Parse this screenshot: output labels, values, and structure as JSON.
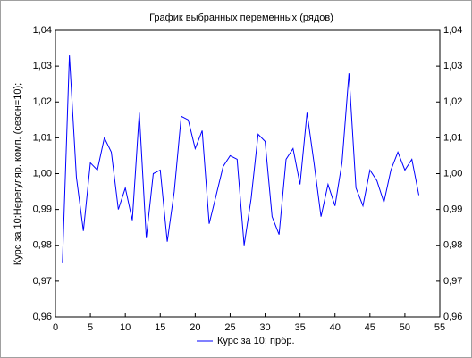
{
  "chart_data": {
    "type": "line",
    "title": "График выбранных переменных (рядов)",
    "y_label": "Курс за 10;Нерегуляр. комп. (сезон=10);",
    "x": [
      1,
      2,
      3,
      4,
      5,
      6,
      7,
      8,
      9,
      10,
      11,
      12,
      13,
      14,
      15,
      16,
      17,
      18,
      19,
      20,
      21,
      22,
      23,
      24,
      25,
      26,
      27,
      28,
      29,
      30,
      31,
      32,
      33,
      34,
      35,
      36,
      37,
      38,
      39,
      40,
      41,
      42,
      43,
      44,
      45,
      46,
      47,
      48,
      49,
      50,
      51,
      52
    ],
    "series": [
      {
        "name": "Курс за 10; прбр.",
        "color": "#0000ff",
        "values": [
          0.975,
          1.033,
          0.999,
          0.984,
          1.003,
          1.001,
          1.01,
          1.006,
          0.99,
          0.996,
          0.987,
          1.017,
          0.982,
          1.0,
          1.001,
          0.981,
          0.995,
          1.016,
          1.015,
          1.007,
          1.012,
          0.986,
          0.994,
          1.002,
          1.005,
          1.004,
          0.98,
          0.993,
          1.011,
          1.009,
          0.988,
          0.983,
          1.004,
          1.007,
          0.997,
          1.017,
          1.003,
          0.988,
          0.997,
          0.991,
          1.003,
          1.028,
          0.996,
          0.991,
          1.001,
          0.998,
          0.992,
          1.001,
          1.006,
          1.001,
          1.004,
          0.994
        ]
      }
    ],
    "xlim": [
      0,
      55
    ],
    "xticks": [
      0,
      5,
      10,
      15,
      20,
      25,
      30,
      35,
      40,
      45,
      50,
      55
    ],
    "ylim": [
      0.96,
      1.04
    ],
    "yticks": [
      {
        "value": 0.96,
        "label": "0,96"
      },
      {
        "value": 0.97,
        "label": "0,97"
      },
      {
        "value": 0.98,
        "label": "0,98"
      },
      {
        "value": 0.99,
        "label": "0,99"
      },
      {
        "value": 1.0,
        "label": "1,00"
      },
      {
        "value": 1.01,
        "label": "1,01"
      },
      {
        "value": 1.02,
        "label": "1,02"
      },
      {
        "value": 1.03,
        "label": "1,03"
      },
      {
        "value": 1.04,
        "label": "1,04"
      }
    ]
  }
}
